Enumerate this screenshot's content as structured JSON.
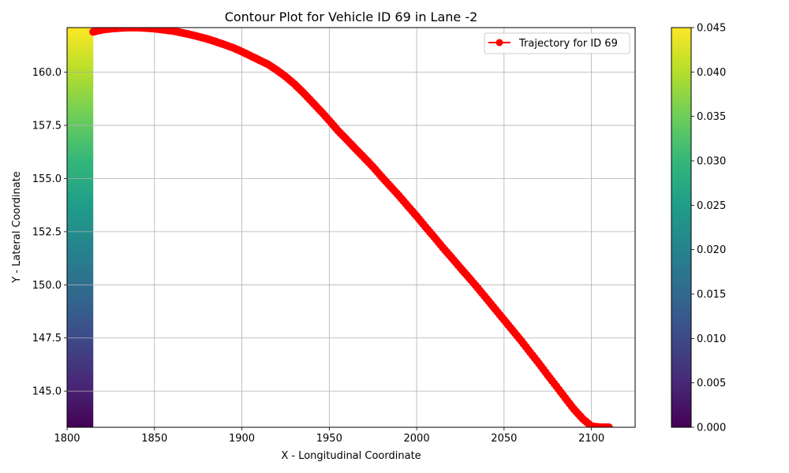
{
  "chart_data": {
    "type": "line",
    "title": "Contour Plot for Vehicle ID 69 in Lane -2",
    "xlabel": "X - Longitudinal Coordinate",
    "ylabel": "Y - Lateral Coordinate",
    "xlim": [
      1800,
      2125
    ],
    "ylim": [
      143.3,
      162.1
    ],
    "xticks": [
      "1800",
      "1850",
      "1900",
      "1950",
      "2000",
      "2050",
      "2100"
    ],
    "yticks": [
      "145.0",
      "147.5",
      "150.0",
      "152.5",
      "155.0",
      "157.5",
      "160.0"
    ],
    "grid": true,
    "legend": {
      "placement": "top-right",
      "entries": [
        "Trajectory for ID 69"
      ]
    },
    "series": [
      {
        "name": "Trajectory for ID 69",
        "color": "#ff0000",
        "marker": "circle",
        "points": [
          [
            1815,
            161.9
          ],
          [
            1820,
            162.0
          ],
          [
            1825,
            162.05
          ],
          [
            1830,
            162.08
          ],
          [
            1835,
            162.1
          ],
          [
            1840,
            162.1
          ],
          [
            1845,
            162.08
          ],
          [
            1850,
            162.05
          ],
          [
            1855,
            162.0
          ],
          [
            1860,
            161.95
          ],
          [
            1865,
            161.87
          ],
          [
            1870,
            161.78
          ],
          [
            1875,
            161.68
          ],
          [
            1880,
            161.57
          ],
          [
            1885,
            161.44
          ],
          [
            1890,
            161.3
          ],
          [
            1895,
            161.15
          ],
          [
            1900,
            160.97
          ],
          [
            1905,
            160.77
          ],
          [
            1910,
            160.57
          ],
          [
            1915,
            160.37
          ],
          [
            1920,
            160.1
          ],
          [
            1925,
            159.8
          ],
          [
            1930,
            159.45
          ],
          [
            1935,
            159.05
          ],
          [
            1940,
            158.62
          ],
          [
            1945,
            158.18
          ],
          [
            1950,
            157.73
          ],
          [
            1955,
            157.25
          ],
          [
            1960,
            156.83
          ],
          [
            1965,
            156.4
          ],
          [
            1970,
            155.98
          ],
          [
            1975,
            155.55
          ],
          [
            1980,
            155.08
          ],
          [
            1985,
            154.63
          ],
          [
            1990,
            154.18
          ],
          [
            1995,
            153.7
          ],
          [
            2000,
            153.23
          ],
          [
            2005,
            152.73
          ],
          [
            2010,
            152.25
          ],
          [
            2015,
            151.75
          ],
          [
            2020,
            151.28
          ],
          [
            2025,
            150.8
          ],
          [
            2030,
            150.33
          ],
          [
            2035,
            149.85
          ],
          [
            2040,
            149.35
          ],
          [
            2045,
            148.85
          ],
          [
            2050,
            148.35
          ],
          [
            2055,
            147.85
          ],
          [
            2060,
            147.35
          ],
          [
            2065,
            146.82
          ],
          [
            2070,
            146.3
          ],
          [
            2075,
            145.75
          ],
          [
            2080,
            145.22
          ],
          [
            2085,
            144.68
          ],
          [
            2090,
            144.15
          ],
          [
            2095,
            143.7
          ],
          [
            2100,
            143.35
          ],
          [
            2105,
            143.3
          ],
          [
            2110,
            143.3
          ]
        ]
      }
    ],
    "heatmap": {
      "x_range": [
        1800,
        1815
      ],
      "note_scale": "viridis"
    },
    "colorbar": {
      "range": [
        0,
        0.045
      ],
      "ticks": [
        "0.000",
        "0.005",
        "0.010",
        "0.015",
        "0.020",
        "0.025",
        "0.030",
        "0.035",
        "0.040",
        "0.045"
      ],
      "colormap": "viridis"
    }
  }
}
